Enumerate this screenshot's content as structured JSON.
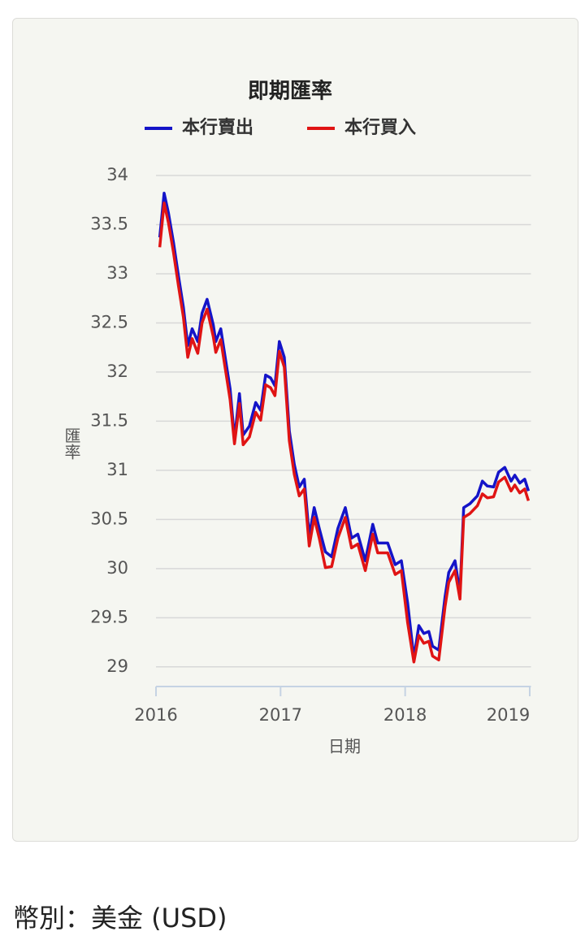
{
  "chart_data": {
    "type": "line",
    "title": "即期匯率",
    "xlabel": "日期",
    "ylabel": "匯率",
    "x": [
      2016.03,
      2016.065,
      2016.1,
      2016.14,
      2016.18,
      2016.22,
      2016.255,
      2016.29,
      2016.335,
      2016.37,
      2016.41,
      2016.46,
      2016.48,
      2016.52,
      2016.56,
      2016.595,
      2016.63,
      2016.67,
      2016.7,
      2016.75,
      2016.8,
      2016.84,
      2016.88,
      2016.92,
      2016.955,
      2016.99,
      2017.03,
      2017.07,
      2017.11,
      2017.15,
      2017.19,
      2017.23,
      2017.27,
      2017.31,
      2017.36,
      2017.41,
      2017.46,
      2017.52,
      2017.57,
      2017.62,
      2017.68,
      2017.74,
      2017.78,
      2017.86,
      2017.92,
      2017.97,
      2018.02,
      2018.07,
      2018.11,
      2018.15,
      2018.19,
      2018.22,
      2018.27,
      2018.32,
      2018.35,
      2018.4,
      2018.44,
      2018.47,
      2018.52,
      2018.58,
      2018.62,
      2018.66,
      2018.71,
      2018.75,
      2018.8,
      2018.85,
      2018.88,
      2018.92,
      2018.96,
      2018.99
    ],
    "series": [
      {
        "name": "本行賣出",
        "color": "#1414c8",
        "values": [
          33.37,
          33.82,
          33.62,
          33.32,
          32.98,
          32.66,
          32.27,
          32.44,
          32.31,
          32.6,
          32.74,
          32.48,
          32.31,
          32.44,
          32.11,
          31.83,
          31.32,
          31.78,
          31.36,
          31.45,
          31.69,
          31.61,
          31.97,
          31.94,
          31.86,
          32.31,
          32.15,
          31.4,
          31.06,
          30.83,
          30.91,
          30.33,
          30.62,
          30.41,
          30.17,
          30.12,
          30.41,
          30.62,
          30.31,
          30.35,
          30.08,
          30.45,
          30.26,
          30.26,
          30.04,
          30.08,
          29.65,
          29.09,
          29.42,
          29.34,
          29.36,
          29.21,
          29.17,
          29.71,
          29.96,
          30.08,
          29.75,
          30.62,
          30.66,
          30.74,
          30.89,
          30.84,
          30.83,
          30.98,
          31.03,
          30.89,
          30.95,
          30.87,
          30.91,
          30.79
        ]
      },
      {
        "name": "本行買入",
        "color": "#e01414",
        "values": [
          33.27,
          33.72,
          33.52,
          33.22,
          32.88,
          32.56,
          32.15,
          32.34,
          32.19,
          32.5,
          32.64,
          32.36,
          32.2,
          32.33,
          32.0,
          31.72,
          31.27,
          31.68,
          31.26,
          31.34,
          31.59,
          31.51,
          31.87,
          31.84,
          31.76,
          32.21,
          32.05,
          31.3,
          30.96,
          30.74,
          30.81,
          30.23,
          30.52,
          30.31,
          30.01,
          30.02,
          30.31,
          30.52,
          30.21,
          30.25,
          29.98,
          30.35,
          30.16,
          30.16,
          29.94,
          29.98,
          29.45,
          29.05,
          29.32,
          29.24,
          29.26,
          29.11,
          29.07,
          29.61,
          29.86,
          29.98,
          29.69,
          30.52,
          30.56,
          30.64,
          30.76,
          30.72,
          30.73,
          30.88,
          30.93,
          30.79,
          30.85,
          30.77,
          30.81,
          30.69
        ]
      }
    ],
    "xlim": [
      2016,
      2019.01
    ],
    "xticks": [
      2016,
      2017,
      2018,
      2019
    ],
    "ylim": [
      28.8,
      34
    ],
    "yticks": [
      29,
      29.5,
      30,
      30.5,
      31,
      31.5,
      32,
      32.5,
      33,
      33.5,
      34
    ],
    "grid": true
  },
  "footer": "幣別：美金 (USD)"
}
